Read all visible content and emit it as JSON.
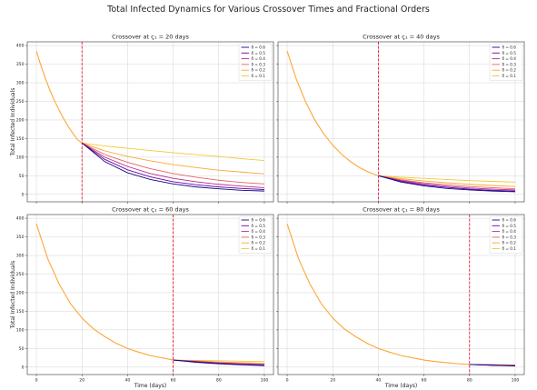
{
  "figure": {
    "title": "Total Infected Dynamics for Various Crossover Times and Fractional Orders"
  },
  "colors": {
    "background": "#ffffff",
    "crossover_line": "#e8001c",
    "series": [
      "#0d0887",
      "#6a00a8",
      "#b12a90",
      "#e16462",
      "#fca636",
      "#f0c93c"
    ]
  },
  "chart_data": [
    {
      "type": "line",
      "title": "Crossover at ς₁ = 20 days",
      "xlabel": "",
      "ylabel": "Total Infected Individuals",
      "xlim": [
        -4,
        104
      ],
      "ylim": [
        -20,
        410
      ],
      "xticks": [
        0,
        20,
        40,
        60,
        80,
        100
      ],
      "yticks": [
        0,
        50,
        100,
        150,
        200,
        250,
        300,
        350,
        400
      ],
      "show_xtick_labels": false,
      "show_ytick_labels": true,
      "grid": true,
      "legend_position": "top-right",
      "crossover": 20,
      "initial_curve": {
        "x": [
          0,
          2,
          4,
          6,
          8,
          10,
          12,
          14,
          16,
          18,
          20
        ],
        "y": [
          385,
          346,
          311,
          279,
          251,
          226,
          203,
          182,
          164,
          147,
          138
        ]
      },
      "series": [
        {
          "name": "δ = 0.6",
          "x": [
            20,
            30,
            40,
            50,
            60,
            70,
            80,
            90,
            100
          ],
          "y": [
            138,
            88,
            58,
            40,
            28,
            20,
            15,
            11,
            9
          ]
        },
        {
          "name": "δ = 0.5",
          "x": [
            20,
            30,
            40,
            50,
            60,
            70,
            80,
            90,
            100
          ],
          "y": [
            138,
            94,
            66,
            47,
            34,
            26,
            20,
            16,
            13
          ]
        },
        {
          "name": "δ = 0.4",
          "x": [
            20,
            30,
            40,
            50,
            60,
            70,
            80,
            90,
            100
          ],
          "y": [
            138,
            100,
            75,
            56,
            43,
            34,
            27,
            22,
            18
          ]
        },
        {
          "name": "δ = 0.3",
          "x": [
            20,
            30,
            40,
            50,
            60,
            70,
            80,
            90,
            100
          ],
          "y": [
            138,
            107,
            86,
            69,
            56,
            46,
            38,
            32,
            28
          ]
        },
        {
          "name": "δ = 0.2",
          "x": [
            20,
            30,
            40,
            50,
            60,
            70,
            80,
            90,
            100
          ],
          "y": [
            138,
            117,
            102,
            90,
            80,
            72,
            65,
            60,
            55
          ]
        },
        {
          "name": "δ = 0.1",
          "x": [
            20,
            30,
            40,
            50,
            60,
            70,
            80,
            90,
            100
          ],
          "y": [
            138,
            130,
            124,
            118,
            112,
            107,
            102,
            96,
            91
          ]
        }
      ]
    },
    {
      "type": "line",
      "title": "Crossover at ς₁ = 40 days",
      "xlabel": "",
      "ylabel": "",
      "xlim": [
        -4,
        104
      ],
      "ylim": [
        -20,
        410
      ],
      "xticks": [
        0,
        20,
        40,
        60,
        80,
        100
      ],
      "yticks": [
        0,
        50,
        100,
        150,
        200,
        250,
        300,
        350,
        400
      ],
      "show_xtick_labels": false,
      "show_ytick_labels": false,
      "grid": true,
      "legend_position": "top-right",
      "crossover": 40,
      "initial_curve": {
        "x": [
          0,
          4,
          8,
          12,
          16,
          20,
          24,
          28,
          32,
          36,
          40
        ],
        "y": [
          385,
          310,
          250,
          201,
          163,
          132,
          107,
          87,
          71,
          59,
          50
        ]
      },
      "series": [
        {
          "name": "δ = 0.6",
          "x": [
            40,
            50,
            60,
            70,
            80,
            90,
            100
          ],
          "y": [
            50,
            33,
            23,
            16,
            12,
            9,
            7
          ]
        },
        {
          "name": "δ = 0.5",
          "x": [
            40,
            50,
            60,
            70,
            80,
            90,
            100
          ],
          "y": [
            50,
            35,
            25,
            19,
            14,
            11,
            9
          ]
        },
        {
          "name": "δ = 0.4",
          "x": [
            40,
            50,
            60,
            70,
            80,
            90,
            100
          ],
          "y": [
            50,
            37,
            28,
            22,
            17,
            14,
            12
          ]
        },
        {
          "name": "δ = 0.3",
          "x": [
            40,
            50,
            60,
            70,
            80,
            90,
            100
          ],
          "y": [
            50,
            39,
            31,
            26,
            21,
            18,
            15
          ]
        },
        {
          "name": "δ = 0.2",
          "x": [
            40,
            50,
            60,
            70,
            80,
            90,
            100
          ],
          "y": [
            50,
            42,
            36,
            31,
            27,
            24,
            21
          ]
        },
        {
          "name": "δ = 0.1",
          "x": [
            40,
            50,
            60,
            70,
            80,
            90,
            100
          ],
          "y": [
            50,
            46,
            43,
            40,
            37,
            35,
            33
          ]
        }
      ]
    },
    {
      "type": "line",
      "title": "Crossover at ς₁ = 60 days",
      "xlabel": "Time (days)",
      "ylabel": "Total Infected Individuals",
      "xlim": [
        -4,
        104
      ],
      "ylim": [
        -20,
        410
      ],
      "xticks": [
        0,
        20,
        40,
        60,
        80,
        100
      ],
      "yticks": [
        0,
        50,
        100,
        150,
        200,
        250,
        300,
        350,
        400
      ],
      "show_xtick_labels": true,
      "show_ytick_labels": true,
      "grid": true,
      "legend_position": "top-right",
      "crossover": 60,
      "initial_curve": {
        "x": [
          0,
          5,
          10,
          15,
          20,
          25,
          30,
          35,
          40,
          45,
          50,
          55,
          60
        ],
        "y": [
          385,
          291,
          223,
          170,
          132,
          103,
          82,
          64,
          50,
          40,
          31,
          25,
          19
        ]
      },
      "series": [
        {
          "name": "δ = 0.6",
          "x": [
            60,
            70,
            80,
            90,
            100
          ],
          "y": [
            19,
            13,
            9,
            6,
            4
          ]
        },
        {
          "name": "δ = 0.5",
          "x": [
            60,
            70,
            80,
            90,
            100
          ],
          "y": [
            19,
            14,
            10,
            7,
            5
          ]
        },
        {
          "name": "δ = 0.4",
          "x": [
            60,
            70,
            80,
            90,
            100
          ],
          "y": [
            19,
            15,
            11,
            8,
            6
          ]
        },
        {
          "name": "δ = 0.3",
          "x": [
            60,
            70,
            80,
            90,
            100
          ],
          "y": [
            19,
            16,
            12,
            10,
            8
          ]
        },
        {
          "name": "δ = 0.2",
          "x": [
            60,
            70,
            80,
            90,
            100
          ],
          "y": [
            19,
            17,
            14,
            12,
            10
          ]
        },
        {
          "name": "δ = 0.1",
          "x": [
            60,
            70,
            80,
            90,
            100
          ],
          "y": [
            19,
            18,
            17,
            16,
            15
          ]
        }
      ]
    },
    {
      "type": "line",
      "title": "Crossover at ς₁ = 80 days",
      "xlabel": "Time (days)",
      "ylabel": "",
      "xlim": [
        -4,
        104
      ],
      "ylim": [
        -20,
        410
      ],
      "xticks": [
        0,
        20,
        40,
        60,
        80,
        100
      ],
      "yticks": [
        0,
        50,
        100,
        150,
        200,
        250,
        300,
        350,
        400
      ],
      "show_xtick_labels": true,
      "show_ytick_labels": false,
      "grid": true,
      "legend_position": "top-right",
      "crossover": 80,
      "initial_curve": {
        "x": [
          0,
          5,
          10,
          15,
          20,
          25,
          30,
          35,
          40,
          45,
          50,
          55,
          60,
          65,
          70,
          75,
          80
        ],
        "y": [
          385,
          291,
          223,
          170,
          132,
          103,
          82,
          64,
          50,
          40,
          31,
          25,
          19,
          15,
          12,
          9,
          7
        ]
      },
      "series": [
        {
          "name": "δ = 0.6",
          "x": [
            80,
            90,
            100
          ],
          "y": [
            7,
            5,
            3
          ]
        },
        {
          "name": "δ = 0.5",
          "x": [
            80,
            90,
            100
          ],
          "y": [
            7,
            5,
            4
          ]
        },
        {
          "name": "δ = 0.4",
          "x": [
            80,
            90,
            100
          ],
          "y": [
            7,
            6,
            4
          ]
        },
        {
          "name": "δ = 0.3",
          "x": [
            80,
            90,
            100
          ],
          "y": [
            7,
            6,
            5
          ]
        },
        {
          "name": "δ = 0.2",
          "x": [
            80,
            90,
            100
          ],
          "y": [
            7,
            6,
            5
          ]
        },
        {
          "name": "δ = 0.1",
          "x": [
            80,
            90,
            100
          ],
          "y": [
            7,
            7,
            6
          ]
        }
      ]
    }
  ]
}
